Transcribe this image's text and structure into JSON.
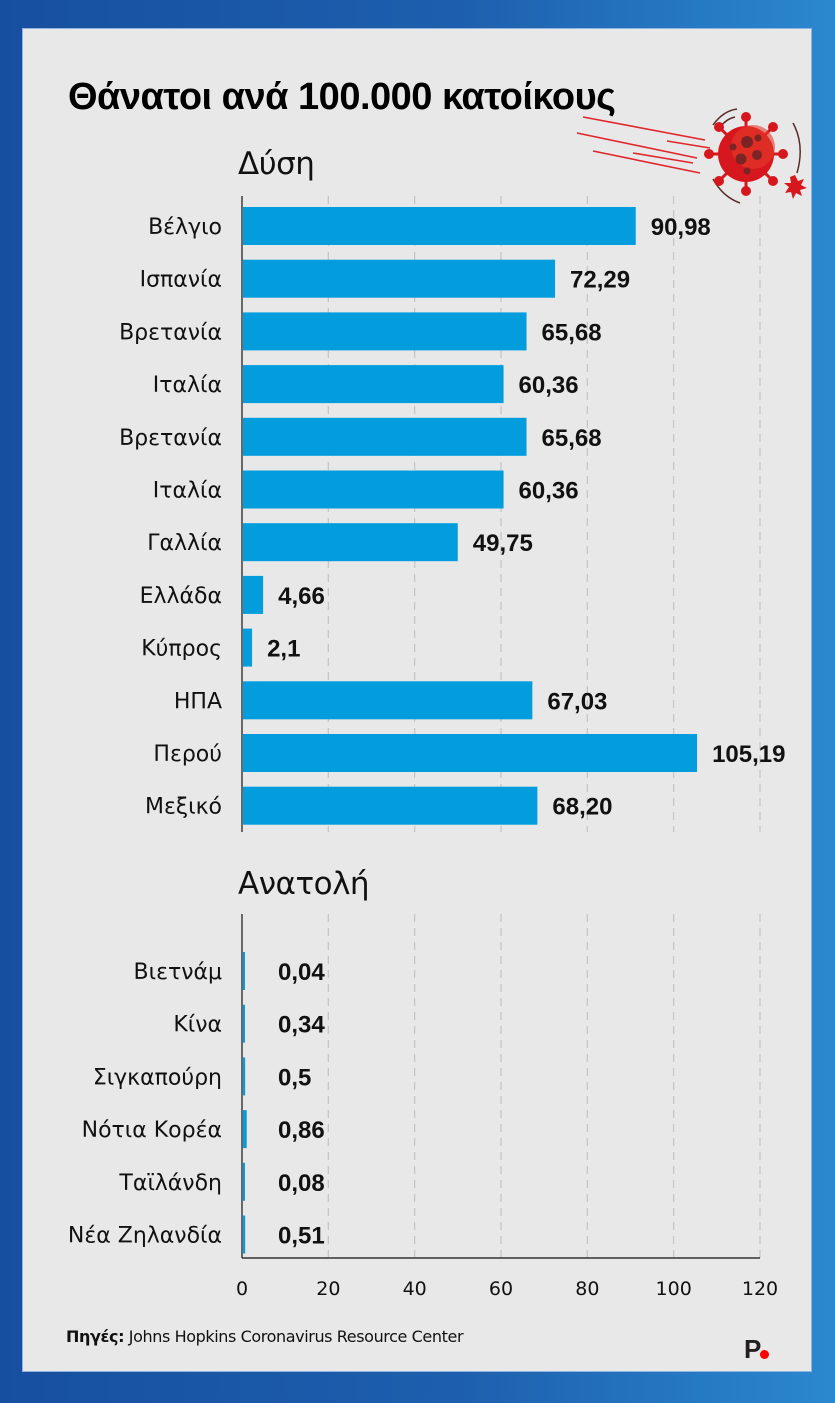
{
  "page": {
    "background_colors": [
      "#174fa0",
      "#2b88cf"
    ],
    "panel_color": "#e8e8e8"
  },
  "header": {
    "title": "Θάνατοι ανά 100.000 κατοίκους",
    "illustration": "coronavirus-icon"
  },
  "footer": {
    "source_label": "Πηγές:",
    "source_text": "Johns Hopkins Coronavirus Resource Center",
    "logo_letter": "P",
    "logo_dot_color": "#ff0000"
  },
  "chart_data": {
    "type": "bar",
    "orientation": "horizontal",
    "title": "Θάνατοι ανά 100.000 κατοίκους",
    "xlabel": "",
    "ylabel": "",
    "xlim": [
      0,
      120
    ],
    "xticks": [
      0,
      20,
      40,
      60,
      80,
      100,
      120
    ],
    "grid": true,
    "bar_color": "#039cdd",
    "groups": [
      {
        "name": "Δύση",
        "categories": [
          "Βέλγιο",
          "Ισπανία",
          "Βρετανία",
          "Ιταλία",
          "Βρετανία",
          "Ιταλία",
          "Γαλλία",
          "Ελλάδα",
          "Κύπρος",
          "ΗΠΑ",
          "Περού",
          "Μεξικό"
        ],
        "values": [
          90.98,
          72.29,
          65.68,
          60.36,
          65.68,
          60.36,
          49.75,
          4.66,
          2.1,
          67.03,
          105.19,
          68.2
        ],
        "value_labels": [
          "90,98",
          "72,29",
          "65,68",
          "60,36",
          "65,68",
          "60,36",
          "49,75",
          "4,66",
          "2,1",
          "67,03",
          "105,19",
          "68,20"
        ]
      },
      {
        "name": "Ανατολή",
        "categories": [
          "Βιετνάμ",
          "Κίνα",
          "Σιγκαπούρη",
          "Νότια Κορέα",
          "Ταϊλάνδη",
          "Νέα Ζηλανδία"
        ],
        "values": [
          0.04,
          0.34,
          0.5,
          0.86,
          0.08,
          0.51
        ],
        "value_labels": [
          "0,04",
          "0,34",
          "0,5",
          "0,86",
          "0,08",
          "0,51"
        ]
      }
    ]
  }
}
